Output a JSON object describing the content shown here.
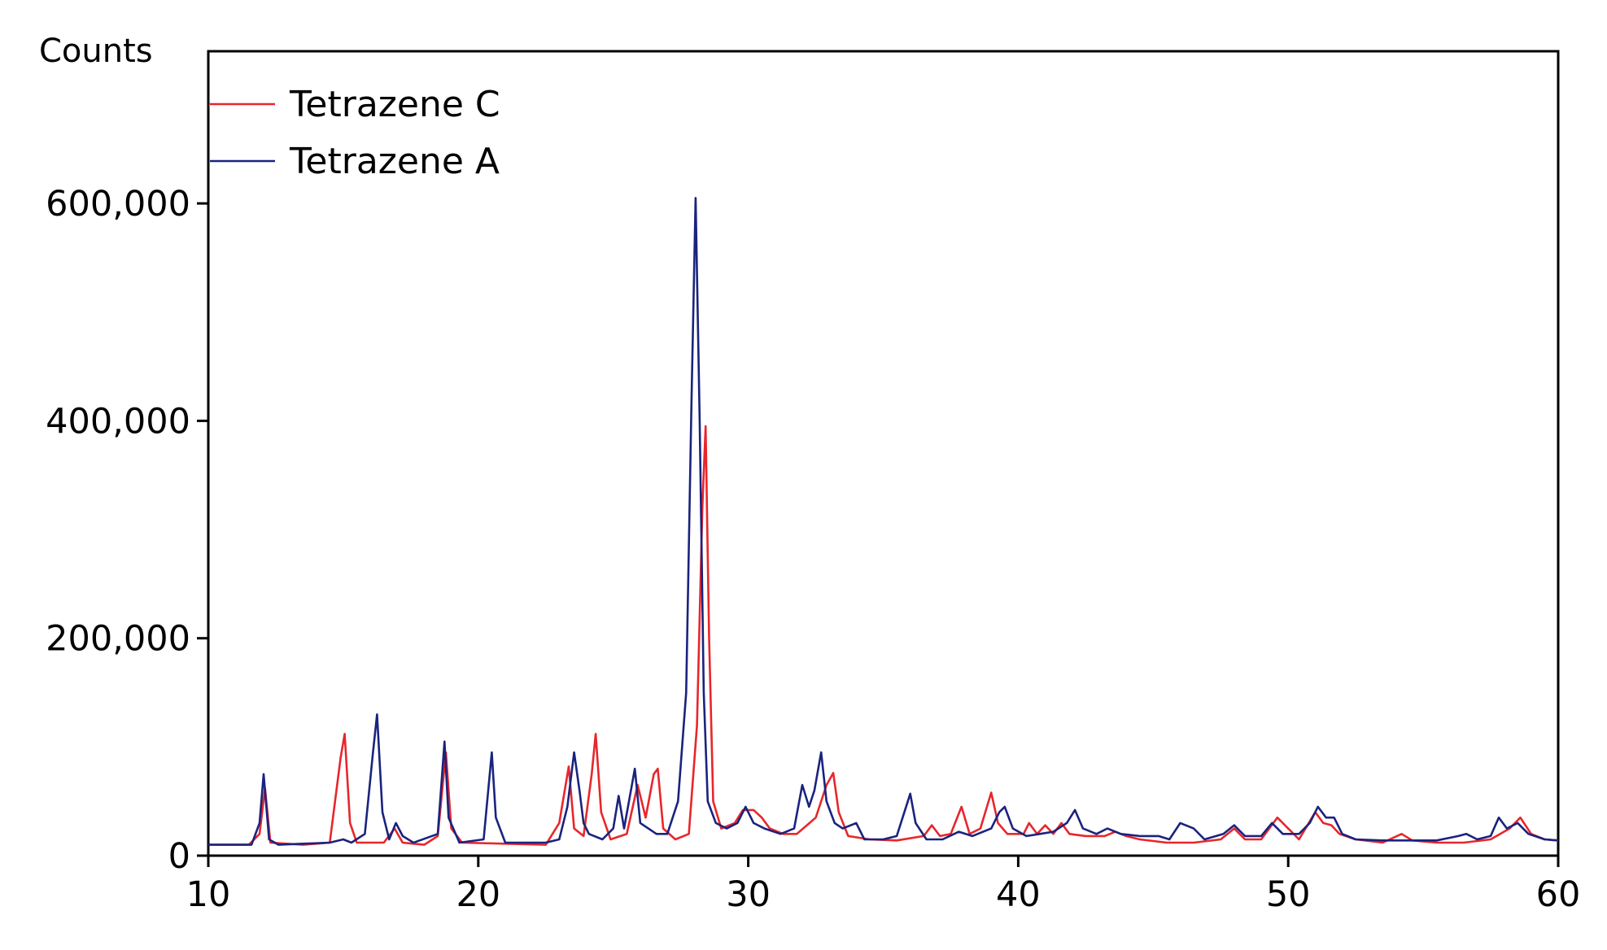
{
  "chart_data": {
    "type": "line",
    "ylabel": "Counts",
    "xlim": [
      10,
      60
    ],
    "ylim": [
      0,
      740000
    ],
    "grid": false,
    "legend_position": "top-left",
    "x_ticks": [
      {
        "value": 10,
        "label": "10"
      },
      {
        "value": 20,
        "label": "20"
      },
      {
        "value": 30,
        "label": "30"
      },
      {
        "value": 40,
        "label": "40"
      },
      {
        "value": 50,
        "label": "50"
      },
      {
        "value": 60,
        "label": "60"
      }
    ],
    "y_ticks": [
      {
        "value": 0,
        "label": "0"
      },
      {
        "value": 200000,
        "label": "200,000"
      },
      {
        "value": 400000,
        "label": "400,000"
      },
      {
        "value": 600000,
        "label": "600,000"
      }
    ],
    "series": [
      {
        "name": "Tetrazene C",
        "color": "#e8262b",
        "points": [
          [
            10,
            10000
          ],
          [
            11.5,
            10000
          ],
          [
            11.9,
            20000
          ],
          [
            12.1,
            62000
          ],
          [
            12.3,
            12000
          ],
          [
            13.5,
            10000
          ],
          [
            14.5,
            12000
          ],
          [
            14.9,
            90000
          ],
          [
            15.05,
            112000
          ],
          [
            15.25,
            30000
          ],
          [
            15.5,
            12000
          ],
          [
            16.5,
            12000
          ],
          [
            16.9,
            25000
          ],
          [
            17.2,
            12000
          ],
          [
            18,
            10000
          ],
          [
            18.5,
            18000
          ],
          [
            18.8,
            95000
          ],
          [
            19.0,
            25000
          ],
          [
            19.4,
            12000
          ],
          [
            22.5,
            10000
          ],
          [
            23.0,
            30000
          ],
          [
            23.35,
            82000
          ],
          [
            23.55,
            25000
          ],
          [
            23.9,
            18000
          ],
          [
            24.2,
            75000
          ],
          [
            24.35,
            112000
          ],
          [
            24.55,
            40000
          ],
          [
            24.9,
            15000
          ],
          [
            25.5,
            20000
          ],
          [
            25.9,
            65000
          ],
          [
            26.2,
            35000
          ],
          [
            26.5,
            75000
          ],
          [
            26.65,
            80000
          ],
          [
            26.85,
            25000
          ],
          [
            27.3,
            15000
          ],
          [
            27.8,
            20000
          ],
          [
            28.1,
            120000
          ],
          [
            28.3,
            320000
          ],
          [
            28.42,
            395000
          ],
          [
            28.55,
            200000
          ],
          [
            28.7,
            50000
          ],
          [
            29.0,
            25000
          ],
          [
            29.5,
            30000
          ],
          [
            29.8,
            42000
          ],
          [
            30.2,
            42000
          ],
          [
            30.5,
            35000
          ],
          [
            30.8,
            25000
          ],
          [
            31.3,
            20000
          ],
          [
            31.8,
            20000
          ],
          [
            32.5,
            35000
          ],
          [
            32.9,
            65000
          ],
          [
            33.15,
            76000
          ],
          [
            33.35,
            40000
          ],
          [
            33.7,
            18000
          ],
          [
            34.5,
            15000
          ],
          [
            35.5,
            14000
          ],
          [
            36.5,
            18000
          ],
          [
            36.8,
            28000
          ],
          [
            37.1,
            18000
          ],
          [
            37.5,
            20000
          ],
          [
            37.9,
            45000
          ],
          [
            38.2,
            20000
          ],
          [
            38.6,
            25000
          ],
          [
            39.0,
            58000
          ],
          [
            39.25,
            30000
          ],
          [
            39.6,
            20000
          ],
          [
            40.2,
            20000
          ],
          [
            40.4,
            30000
          ],
          [
            40.7,
            20000
          ],
          [
            41.0,
            28000
          ],
          [
            41.3,
            20000
          ],
          [
            41.6,
            30000
          ],
          [
            41.9,
            20000
          ],
          [
            42.5,
            18000
          ],
          [
            43.2,
            18000
          ],
          [
            43.6,
            22000
          ],
          [
            44.0,
            18000
          ],
          [
            44.5,
            15000
          ],
          [
            45.5,
            12000
          ],
          [
            46.5,
            12000
          ],
          [
            47.5,
            15000
          ],
          [
            48.0,
            25000
          ],
          [
            48.4,
            15000
          ],
          [
            49.0,
            15000
          ],
          [
            49.6,
            35000
          ],
          [
            50.0,
            25000
          ],
          [
            50.4,
            15000
          ],
          [
            51.0,
            40000
          ],
          [
            51.3,
            30000
          ],
          [
            51.6,
            28000
          ],
          [
            51.9,
            20000
          ],
          [
            52.5,
            15000
          ],
          [
            53.5,
            12000
          ],
          [
            54.2,
            20000
          ],
          [
            54.6,
            14000
          ],
          [
            55.5,
            12000
          ],
          [
            56.5,
            12000
          ],
          [
            57.5,
            15000
          ],
          [
            58.2,
            25000
          ],
          [
            58.6,
            35000
          ],
          [
            59.0,
            20000
          ],
          [
            59.5,
            15000
          ],
          [
            60.0,
            14000
          ]
        ]
      },
      {
        "name": "Tetrazene A",
        "color": "#1a237e",
        "points": [
          [
            10,
            10000
          ],
          [
            11.6,
            10000
          ],
          [
            11.9,
            30000
          ],
          [
            12.05,
            75000
          ],
          [
            12.25,
            15000
          ],
          [
            12.6,
            10000
          ],
          [
            14.5,
            12000
          ],
          [
            15.0,
            15000
          ],
          [
            15.3,
            12000
          ],
          [
            15.8,
            20000
          ],
          [
            16.1,
            95000
          ],
          [
            16.25,
            130000
          ],
          [
            16.45,
            40000
          ],
          [
            16.7,
            15000
          ],
          [
            16.95,
            30000
          ],
          [
            17.2,
            18000
          ],
          [
            17.6,
            12000
          ],
          [
            18.5,
            20000
          ],
          [
            18.75,
            105000
          ],
          [
            18.9,
            35000
          ],
          [
            19.3,
            12000
          ],
          [
            20.2,
            15000
          ],
          [
            20.5,
            95000
          ],
          [
            20.65,
            35000
          ],
          [
            21.0,
            12000
          ],
          [
            22.5,
            12000
          ],
          [
            23.0,
            15000
          ],
          [
            23.3,
            45000
          ],
          [
            23.55,
            95000
          ],
          [
            23.75,
            60000
          ],
          [
            23.9,
            30000
          ],
          [
            24.1,
            20000
          ],
          [
            24.6,
            15000
          ],
          [
            25.0,
            25000
          ],
          [
            25.2,
            55000
          ],
          [
            25.4,
            25000
          ],
          [
            25.8,
            80000
          ],
          [
            26.0,
            30000
          ],
          [
            26.3,
            25000
          ],
          [
            26.6,
            20000
          ],
          [
            27.0,
            20000
          ],
          [
            27.4,
            50000
          ],
          [
            27.7,
            150000
          ],
          [
            27.9,
            420000
          ],
          [
            28.05,
            605000
          ],
          [
            28.2,
            400000
          ],
          [
            28.35,
            150000
          ],
          [
            28.5,
            50000
          ],
          [
            28.8,
            30000
          ],
          [
            29.2,
            25000
          ],
          [
            29.6,
            30000
          ],
          [
            29.9,
            45000
          ],
          [
            30.2,
            30000
          ],
          [
            30.6,
            25000
          ],
          [
            31.2,
            20000
          ],
          [
            31.7,
            25000
          ],
          [
            32.0,
            65000
          ],
          [
            32.25,
            45000
          ],
          [
            32.45,
            60000
          ],
          [
            32.7,
            95000
          ],
          [
            32.9,
            50000
          ],
          [
            33.2,
            30000
          ],
          [
            33.5,
            25000
          ],
          [
            34.0,
            30000
          ],
          [
            34.3,
            15000
          ],
          [
            35.0,
            15000
          ],
          [
            35.5,
            18000
          ],
          [
            36.0,
            57000
          ],
          [
            36.2,
            30000
          ],
          [
            36.6,
            15000
          ],
          [
            37.2,
            15000
          ],
          [
            37.8,
            22000
          ],
          [
            38.3,
            18000
          ],
          [
            39.0,
            25000
          ],
          [
            39.3,
            40000
          ],
          [
            39.5,
            45000
          ],
          [
            39.8,
            25000
          ],
          [
            40.3,
            18000
          ],
          [
            40.8,
            20000
          ],
          [
            41.3,
            22000
          ],
          [
            41.8,
            30000
          ],
          [
            42.1,
            42000
          ],
          [
            42.4,
            25000
          ],
          [
            42.9,
            20000
          ],
          [
            43.3,
            25000
          ],
          [
            43.8,
            20000
          ],
          [
            44.5,
            18000
          ],
          [
            45.2,
            18000
          ],
          [
            45.6,
            15000
          ],
          [
            46.0,
            30000
          ],
          [
            46.5,
            25000
          ],
          [
            46.9,
            15000
          ],
          [
            47.6,
            20000
          ],
          [
            48.0,
            28000
          ],
          [
            48.4,
            18000
          ],
          [
            49.0,
            18000
          ],
          [
            49.4,
            30000
          ],
          [
            49.8,
            20000
          ],
          [
            50.4,
            20000
          ],
          [
            50.8,
            30000
          ],
          [
            51.1,
            45000
          ],
          [
            51.4,
            35000
          ],
          [
            51.7,
            35000
          ],
          [
            52.0,
            20000
          ],
          [
            52.5,
            15000
          ],
          [
            53.5,
            14000
          ],
          [
            54.5,
            14000
          ],
          [
            55.5,
            14000
          ],
          [
            56.3,
            18000
          ],
          [
            56.6,
            20000
          ],
          [
            57.0,
            15000
          ],
          [
            57.5,
            18000
          ],
          [
            57.8,
            35000
          ],
          [
            58.1,
            25000
          ],
          [
            58.5,
            30000
          ],
          [
            58.9,
            20000
          ],
          [
            59.5,
            15000
          ],
          [
            60.0,
            14000
          ]
        ]
      }
    ]
  }
}
